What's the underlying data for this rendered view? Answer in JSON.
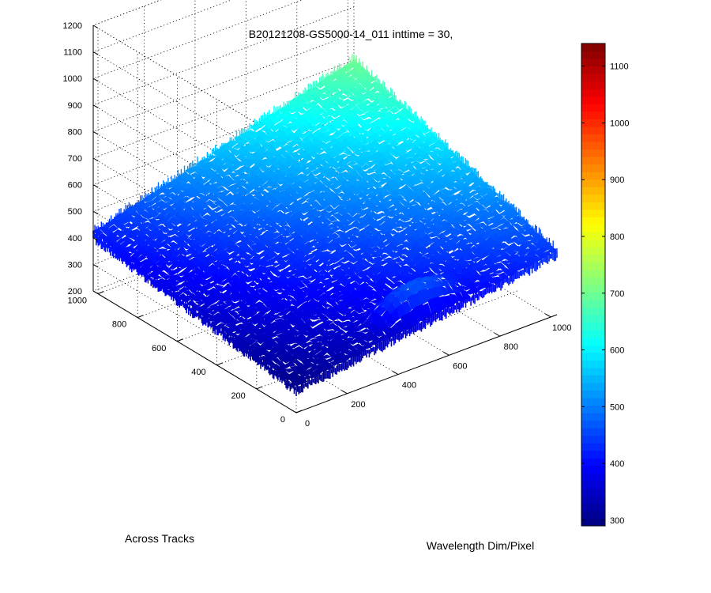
{
  "chart_data": {
    "type": "surface3d",
    "title": "B20121208-GS5000-14_011 inttime = 30,",
    "xlabel": "Wavelength Dim/Pixel",
    "ylabel": "Across Tracks",
    "zlabel": "",
    "xlim": [
      0,
      1024
    ],
    "ylim": [
      0,
      1024
    ],
    "zlim": [
      200,
      1200
    ],
    "x_ticks": [
      0,
      200,
      400,
      600,
      800,
      1000
    ],
    "y_ticks": [
      0,
      200,
      400,
      600,
      800,
      1000
    ],
    "z_ticks": [
      200,
      300,
      400,
      500,
      600,
      700,
      800,
      900,
      1000,
      1100,
      1200
    ],
    "surface": {
      "corners": {
        "x0_y0": 300,
        "x1024_y0": 440,
        "x0_y1024": 420,
        "x1024_y1024": 700
      },
      "noise_amplitude": 25,
      "bright_region": {
        "x_range": [
          350,
          700
        ],
        "y_range": [
          0,
          150
        ],
        "level": 470
      }
    },
    "colormap": "jet",
    "colorbar": {
      "limits": [
        290,
        1140
      ],
      "ticks": [
        300,
        400,
        500,
        600,
        700,
        800,
        900,
        1000,
        1100
      ]
    },
    "grid": true
  }
}
